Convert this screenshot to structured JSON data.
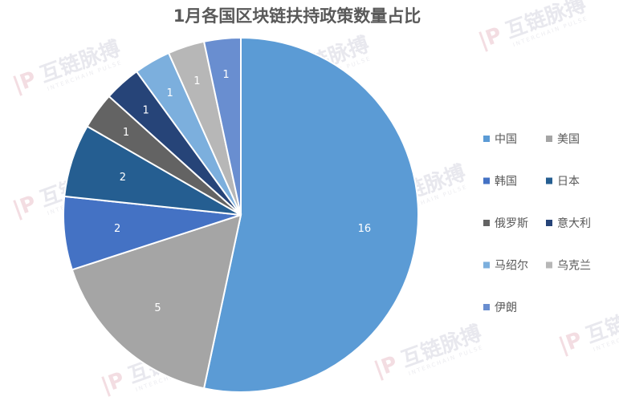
{
  "chart_data": {
    "type": "pie",
    "title": "1月各国区块链扶持政策数量占比",
    "categories": [
      "中国",
      "美国",
      "韩国",
      "日本",
      "俄罗斯",
      "意大利",
      "马绍尔",
      "乌克兰",
      "伊朗"
    ],
    "values": [
      16,
      5,
      2,
      2,
      1,
      1,
      1,
      1,
      1
    ],
    "colors": [
      "#5b9bd5",
      "#a5a5a5",
      "#4472c4",
      "#255e91",
      "#636363",
      "#264478",
      "#7cafdd",
      "#b7b7b7",
      "#698ed0"
    ],
    "data_labels": [
      "16",
      "5",
      "2",
      "2",
      "1",
      "1",
      "1",
      "1",
      "1"
    ],
    "legend_position": "right",
    "start_angle_deg": 0,
    "direction": "clockwise"
  },
  "watermark": {
    "text": "互链脉搏",
    "subtext": "INTERCHAIN PULSE"
  }
}
